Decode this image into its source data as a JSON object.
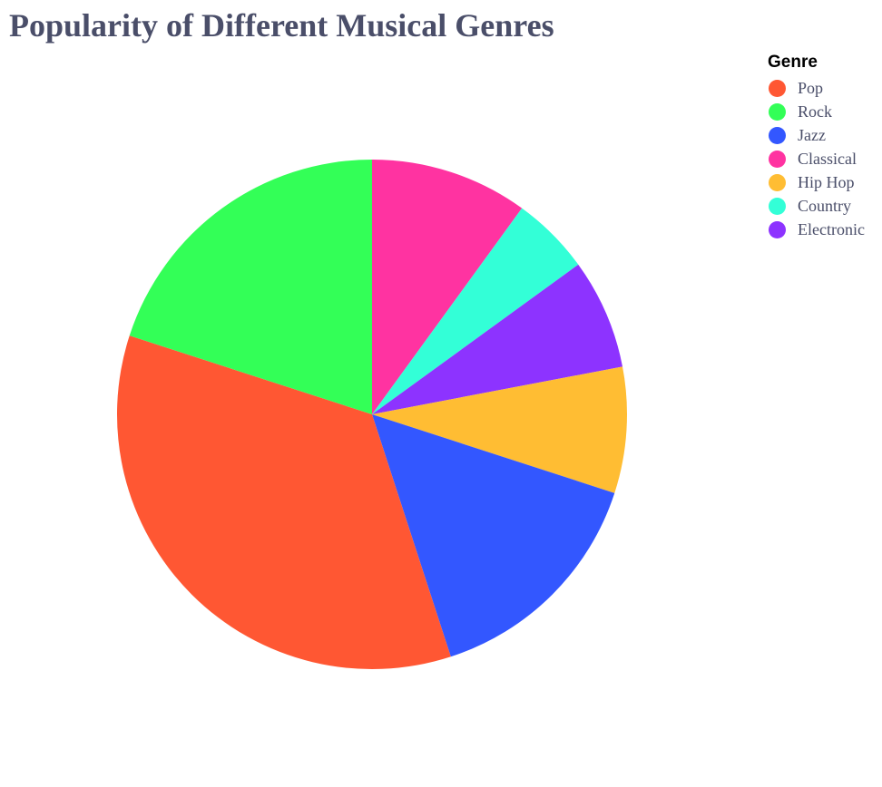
{
  "chart_data": {
    "type": "pie",
    "title": "Popularity of Different Musical Genres",
    "legend": {
      "title": "Genre",
      "placement": "top-right"
    },
    "categories": [
      "Pop",
      "Rock",
      "Jazz",
      "Classical",
      "Hip Hop",
      "Country",
      "Electronic"
    ],
    "values": [
      35,
      20,
      15,
      10,
      8,
      5,
      7
    ],
    "colors": [
      "#ff5733",
      "#33ff57",
      "#3357ff",
      "#ff33a1",
      "#ffbd33",
      "#33ffd7",
      "#8d33ff"
    ]
  }
}
